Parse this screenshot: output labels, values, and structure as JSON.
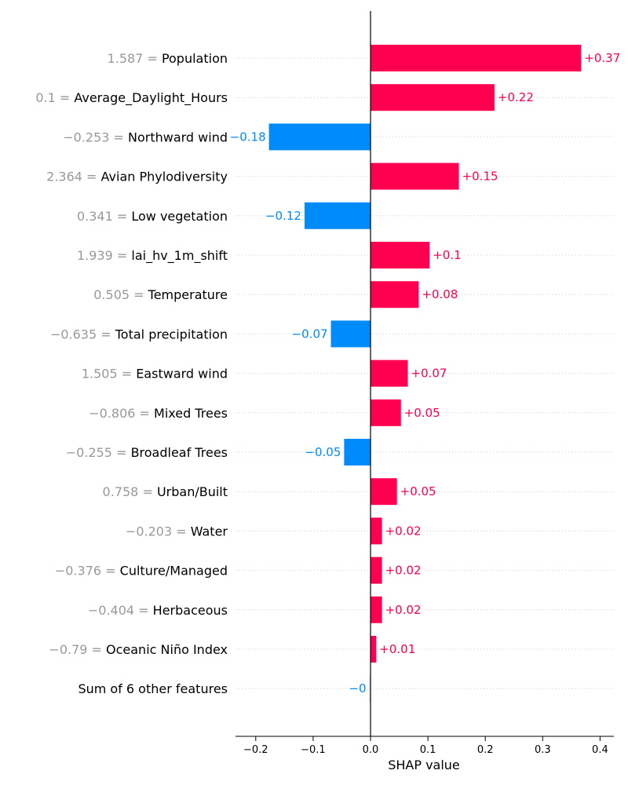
{
  "chart_data": {
    "type": "bar",
    "orientation": "horizontal",
    "xlabel": "SHAP value",
    "xlim": [
      -0.24,
      0.42
    ],
    "xticks": [
      -0.2,
      -0.1,
      0.0,
      0.1,
      0.2,
      0.3,
      0.4
    ],
    "xtick_labels": [
      "−0.2",
      "−0.1",
      "0.0",
      "0.1",
      "0.2",
      "0.3",
      "0.4"
    ],
    "features": [
      {
        "value_text": "1.587 =",
        "name": "Population",
        "shap": 0.367,
        "label": "+0.37"
      },
      {
        "value_text": "0.1 =",
        "name": "Average_Daylight_Hours",
        "shap": 0.216,
        "label": "+0.22"
      },
      {
        "value_text": "−0.253 =",
        "name": "Northward wind",
        "shap": -0.177,
        "label": "−0.18"
      },
      {
        "value_text": "2.364 =",
        "name": "Avian Phylodiversity",
        "shap": 0.154,
        "label": "+0.15"
      },
      {
        "value_text": "0.341 =",
        "name": "Low vegetation",
        "shap": -0.115,
        "label": "−0.12"
      },
      {
        "value_text": "1.939 =",
        "name": "lai_hv_1m_shift",
        "shap": 0.103,
        "label": "+0.1"
      },
      {
        "value_text": "0.505 =",
        "name": "Temperature",
        "shap": 0.084,
        "label": "+0.08"
      },
      {
        "value_text": "−0.635 =",
        "name": "Total precipitation",
        "shap": -0.069,
        "label": "−0.07"
      },
      {
        "value_text": "1.505 =",
        "name": "Eastward wind",
        "shap": 0.065,
        "label": "+0.07"
      },
      {
        "value_text": "−0.806 =",
        "name": "Mixed Trees",
        "shap": 0.053,
        "label": "+0.05"
      },
      {
        "value_text": "−0.255 =",
        "name": "Broadleaf Trees",
        "shap": -0.046,
        "label": "−0.05"
      },
      {
        "value_text": "0.758 =",
        "name": "Urban/Built",
        "shap": 0.046,
        "label": "+0.05"
      },
      {
        "value_text": "−0.203 =",
        "name": "Water",
        "shap": 0.02,
        "label": "+0.02"
      },
      {
        "value_text": "−0.376 =",
        "name": "Culture/Managed",
        "shap": 0.02,
        "label": "+0.02"
      },
      {
        "value_text": "−0.404 =",
        "name": "Herbaceous",
        "shap": 0.02,
        "label": "+0.02"
      },
      {
        "value_text": "−0.79 =",
        "name": "Oceanic Niño Index",
        "shap": 0.01,
        "label": "+0.01"
      },
      {
        "value_text": "",
        "name": "Sum of 6 other features",
        "shap": -0.002,
        "label": "−0"
      }
    ],
    "colors": {
      "positive": "#ff0051",
      "negative": "#008bfb",
      "positive_label": "#ff0051",
      "negative_label": "#008bfb"
    },
    "grid": "dotted-horizontal"
  }
}
